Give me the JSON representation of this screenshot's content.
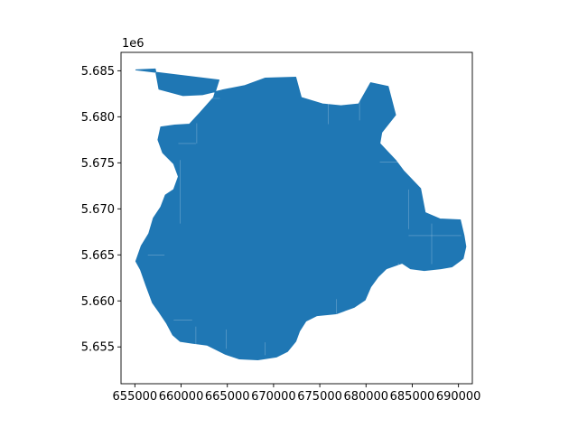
{
  "chart_data": {
    "type": "map",
    "title": "",
    "xlabel": "",
    "ylabel": "",
    "xlim": [
      653500,
      691500
    ],
    "ylim": [
      5651000,
      5687000
    ],
    "x_ticks": [
      655000,
      660000,
      665000,
      670000,
      675000,
      680000,
      685000,
      690000
    ],
    "x_tick_labels": [
      "655000",
      "660000",
      "665000",
      "670000",
      "675000",
      "680000",
      "685000",
      "690000"
    ],
    "y_ticks": [
      5655000,
      5660000,
      5665000,
      5670000,
      5675000,
      5680000,
      5685000
    ],
    "y_tick_labels": [
      "5.655",
      "5.660",
      "5.665",
      "5.670",
      "5.675",
      "5.680",
      "5.685"
    ],
    "y_offset_label": "1e6",
    "grid": false,
    "fill_color": "#1f77b4",
    "edge_color": "#ffffff",
    "region_outline": [
      [
        655100,
        5685100
      ],
      [
        657200,
        5685200
      ],
      [
        657600,
        5683000
      ],
      [
        660200,
        5682300
      ],
      [
        662300,
        5682400
      ],
      [
        664400,
        5682900
      ],
      [
        666900,
        5683400
      ],
      [
        669100,
        5684200
      ],
      [
        672400,
        5684300
      ],
      [
        673000,
        5682100
      ],
      [
        675300,
        5681400
      ],
      [
        677300,
        5681200
      ],
      [
        679200,
        5681400
      ],
      [
        680500,
        5683700
      ],
      [
        682400,
        5683300
      ],
      [
        683200,
        5680200
      ],
      [
        681700,
        5678300
      ],
      [
        681500,
        5677100
      ],
      [
        683200,
        5675300
      ],
      [
        684100,
        5674100
      ],
      [
        685900,
        5672200
      ],
      [
        686400,
        5669600
      ],
      [
        688000,
        5668900
      ],
      [
        690200,
        5668800
      ],
      [
        690600,
        5667100
      ],
      [
        690800,
        5665900
      ],
      [
        690500,
        5664600
      ],
      [
        689300,
        5663700
      ],
      [
        688100,
        5663500
      ],
      [
        686300,
        5663300
      ],
      [
        684800,
        5663500
      ],
      [
        683900,
        5664100
      ],
      [
        682200,
        5663500
      ],
      [
        681300,
        5662600
      ],
      [
        680500,
        5661500
      ],
      [
        679900,
        5660100
      ],
      [
        678700,
        5659300
      ],
      [
        676800,
        5658600
      ],
      [
        674700,
        5658400
      ],
      [
        673500,
        5657800
      ],
      [
        672800,
        5656700
      ],
      [
        672400,
        5655600
      ],
      [
        671500,
        5654500
      ],
      [
        670300,
        5653900
      ],
      [
        668300,
        5653600
      ],
      [
        666300,
        5653700
      ],
      [
        664800,
        5654200
      ],
      [
        662800,
        5655200
      ],
      [
        661200,
        5655400
      ],
      [
        659900,
        5655600
      ],
      [
        659100,
        5656300
      ],
      [
        658400,
        5657600
      ],
      [
        657600,
        5658800
      ],
      [
        656900,
        5659800
      ],
      [
        656200,
        5661700
      ],
      [
        655600,
        5663400
      ],
      [
        655100,
        5664300
      ],
      [
        655700,
        5666000
      ],
      [
        656500,
        5667300
      ],
      [
        657000,
        5669000
      ],
      [
        657800,
        5670200
      ],
      [
        658300,
        5671500
      ],
      [
        659200,
        5672100
      ],
      [
        659700,
        5673500
      ],
      [
        659200,
        5674900
      ],
      [
        658000,
        5676100
      ],
      [
        657500,
        5677500
      ],
      [
        657800,
        5678900
      ],
      [
        659300,
        5679100
      ],
      [
        660900,
        5679200
      ],
      [
        662000,
        5680400
      ],
      [
        663500,
        5682100
      ],
      [
        664100,
        5684000
      ],
      [
        655100,
        5685100
      ]
    ],
    "internal_boundaries": [
      [
        [
          657300,
          5682000
        ],
        [
          664200,
          5682000
        ]
      ],
      [
        [
          659700,
          5677100
        ],
        [
          661600,
          5677100
        ]
      ],
      [
        [
          661700,
          5677100
        ],
        [
          661700,
          5679300
        ]
      ],
      [
        [
          659900,
          5675300
        ],
        [
          659900,
          5668400
        ]
      ],
      [
        [
          656400,
          5665000
        ],
        [
          658200,
          5665000
        ]
      ],
      [
        [
          659200,
          5657900
        ],
        [
          661200,
          5657900
        ]
      ],
      [
        [
          661600,
          5655200
        ],
        [
          661600,
          5657200
        ]
      ],
      [
        [
          664900,
          5654800
        ],
        [
          664900,
          5656900
        ]
      ],
      [
        [
          669100,
          5654100
        ],
        [
          669100,
          5655500
        ]
      ],
      [
        [
          676800,
          5658600
        ],
        [
          676800,
          5660200
        ]
      ],
      [
        [
          679300,
          5679600
        ],
        [
          679300,
          5681900
        ]
      ],
      [
        [
          681500,
          5675100
        ],
        [
          683500,
          5675100
        ]
      ],
      [
        [
          684600,
          5672100
        ],
        [
          684600,
          5667800
        ]
      ],
      [
        [
          684600,
          5667100
        ],
        [
          690300,
          5667100
        ]
      ],
      [
        [
          687100,
          5664000
        ],
        [
          687100,
          5668400
        ]
      ],
      [
        [
          683500,
          5664100
        ],
        [
          683500,
          5661800
        ]
      ],
      [
        [
          675900,
          5681400
        ],
        [
          675900,
          5679200
        ]
      ]
    ]
  }
}
